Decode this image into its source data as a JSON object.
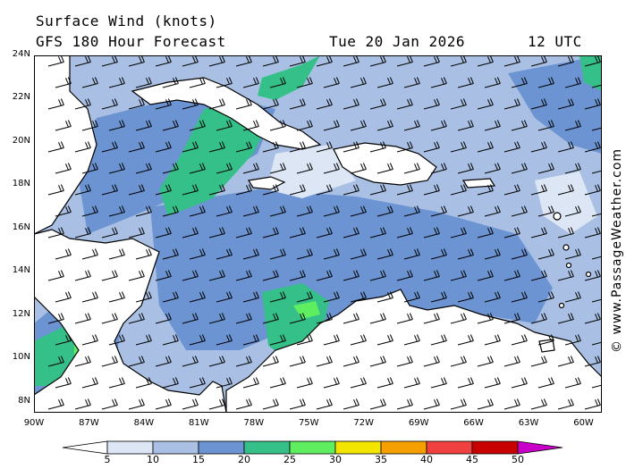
{
  "header": {
    "line1": "Surface Wind (knots)",
    "line2": "GFS 180 Hour Forecast",
    "date": "Tue 20 Jan 2026",
    "time": "12 UTC"
  },
  "credit": "© www.PassageWeather.com",
  "map": {
    "lon_min": -90,
    "lon_max": -59,
    "lat_min": 7.5,
    "lat_max": 24,
    "lat_labels": [
      "24N",
      "22N",
      "20N",
      "18N",
      "16N",
      "14N",
      "12N",
      "10N",
      "8N"
    ],
    "lat_values": [
      24,
      22,
      20,
      18,
      16,
      14,
      12,
      10,
      8
    ],
    "lon_labels": [
      "90W",
      "87W",
      "84W",
      "81W",
      "78W",
      "75W",
      "72W",
      "69W",
      "66W",
      "63W",
      "60W"
    ],
    "lon_values": [
      -90,
      -87,
      -84,
      -81,
      -78,
      -75,
      -72,
      -69,
      -66,
      -63,
      -60
    ]
  },
  "legend": {
    "labels": [
      "5",
      "10",
      "15",
      "20",
      "25",
      "30",
      "35",
      "40",
      "45",
      "50"
    ],
    "colors": [
      "#ffffff",
      "#dde6f5",
      "#a9c0e4",
      "#6c93d2",
      "#35c08a",
      "#5fee5f",
      "#f2e600",
      "#f5a000",
      "#f04040",
      "#c80000",
      "#c800c8"
    ]
  },
  "colors": {
    "background_speed": "#a9c0e4",
    "land": "#ffffff"
  }
}
